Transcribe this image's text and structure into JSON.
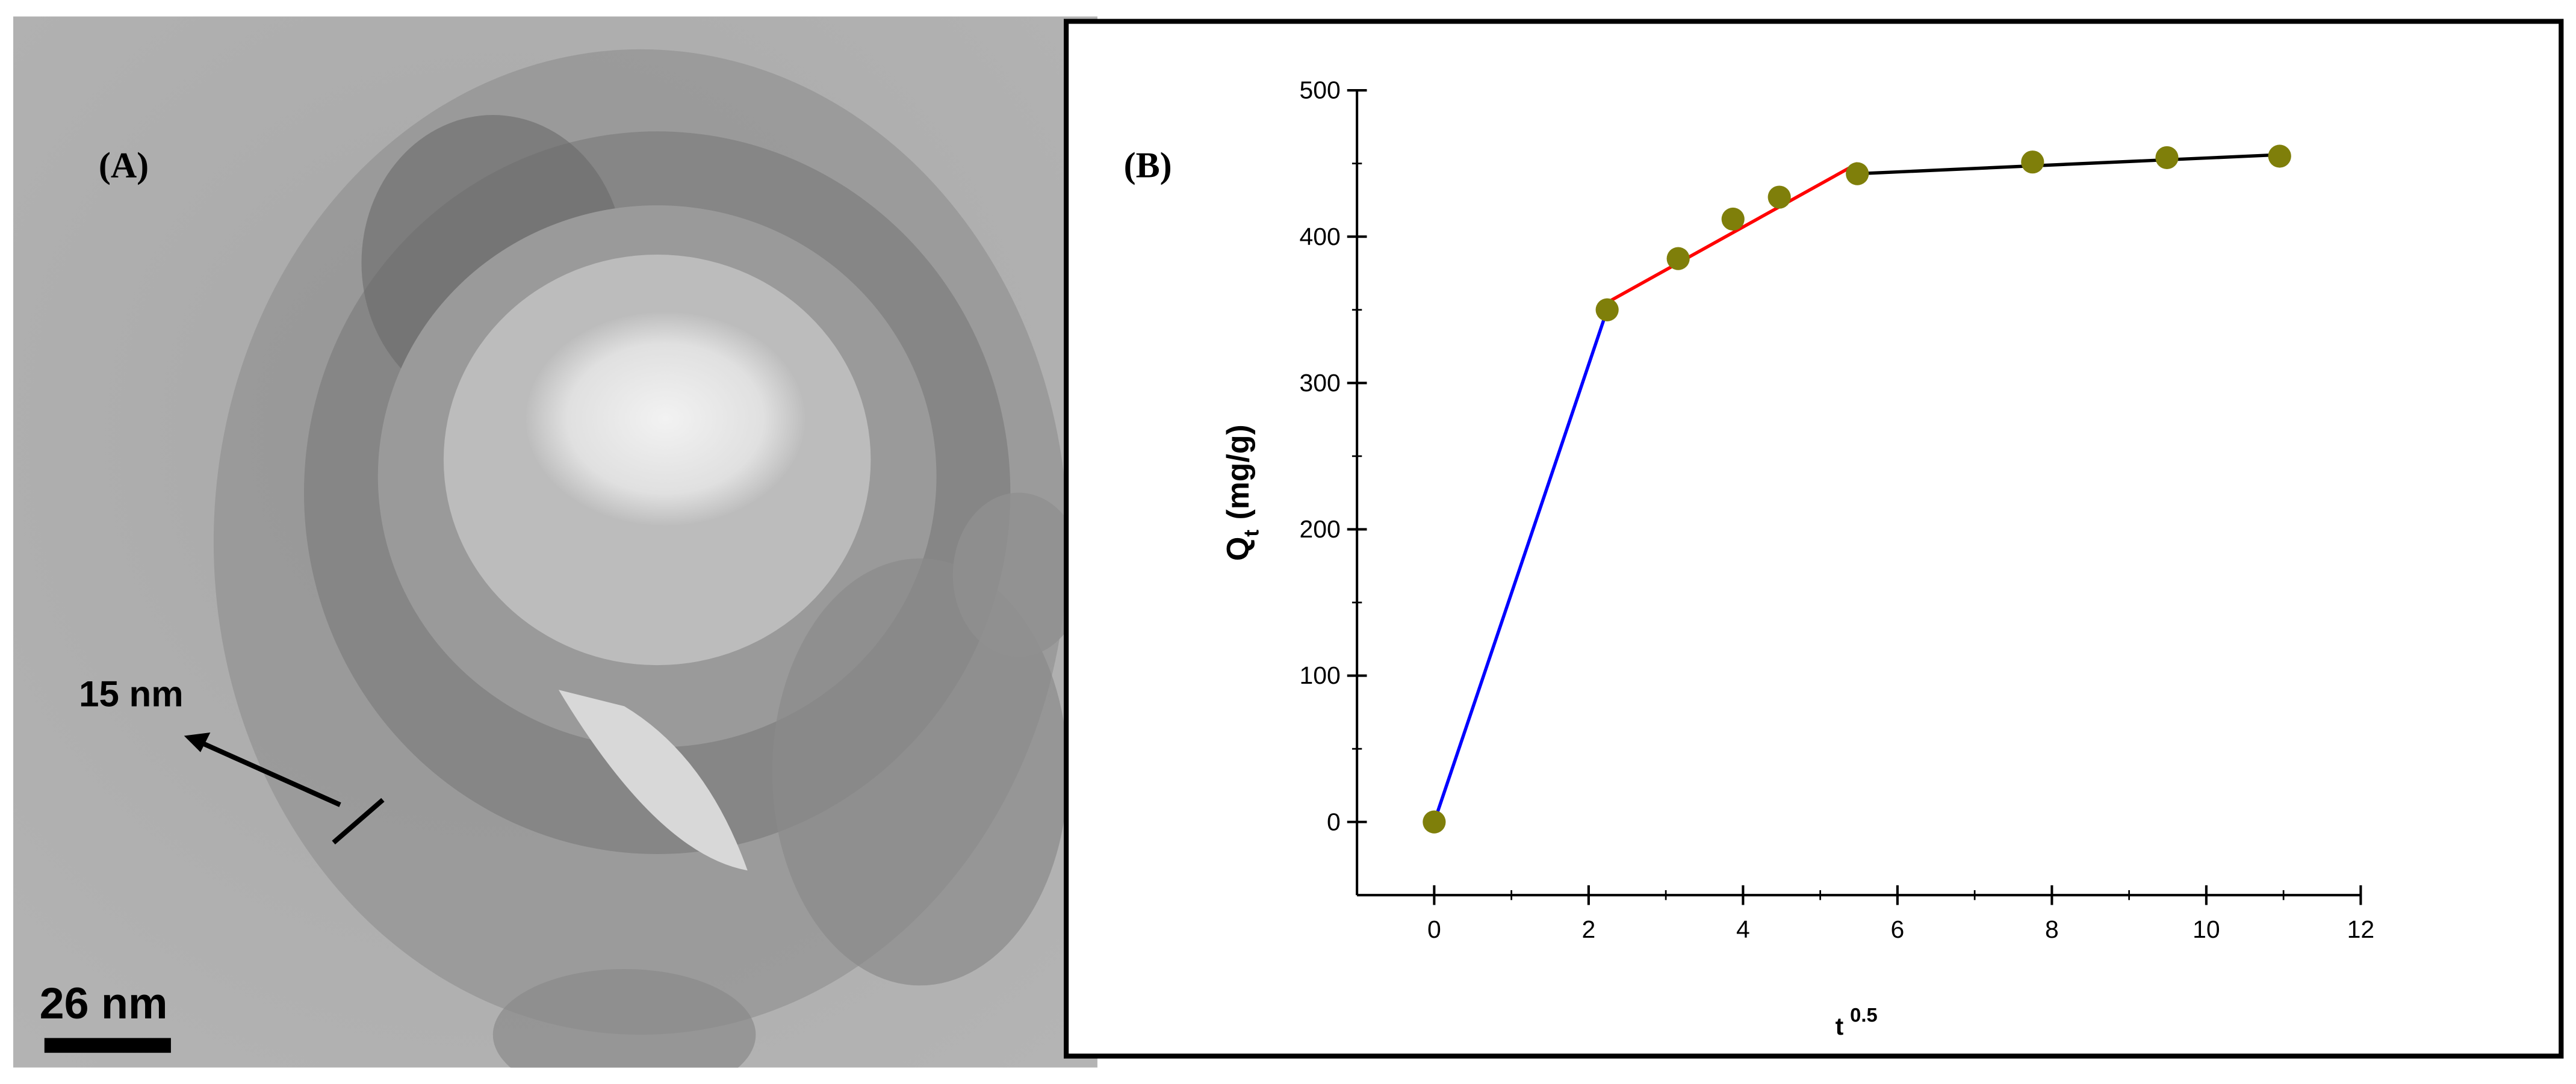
{
  "image_panel": {
    "label": "(A)",
    "annotation": "15 nm",
    "scale_bar": "26 nm"
  },
  "chart_data": {
    "type": "scatter",
    "panel_label": "(B)",
    "xlabel": "t",
    "xlabel_superscript": "0.5",
    "ylabel": "Q",
    "ylabel_subscript": "t",
    "ylabel_unit": "(mg/g)",
    "xlim": [
      -1,
      12
    ],
    "xticks": [
      0,
      2,
      4,
      6,
      8,
      10,
      12
    ],
    "ylim": [
      -50,
      500
    ],
    "yticks": [
      0,
      100,
      200,
      300,
      400,
      500
    ],
    "series": [
      {
        "mode": "line",
        "color": "#0000ff",
        "x": [
          0,
          2.24
        ],
        "values": [
          0,
          350
        ]
      },
      {
        "mode": "line",
        "color": "#ff0000",
        "x": [
          2.24,
          5.48
        ],
        "values": [
          355,
          450
        ]
      },
      {
        "mode": "line",
        "color": "#000000",
        "x": [
          5.48,
          10.95
        ],
        "values": [
          443,
          456
        ]
      },
      {
        "mode": "markers",
        "color": "#7f7f0a",
        "x": [
          0,
          2.24,
          3.16,
          3.87,
          4.47,
          5.48,
          7.75,
          9.49,
          10.95
        ],
        "values": [
          0,
          350,
          385,
          412,
          427,
          443,
          451,
          454,
          455
        ]
      }
    ]
  }
}
